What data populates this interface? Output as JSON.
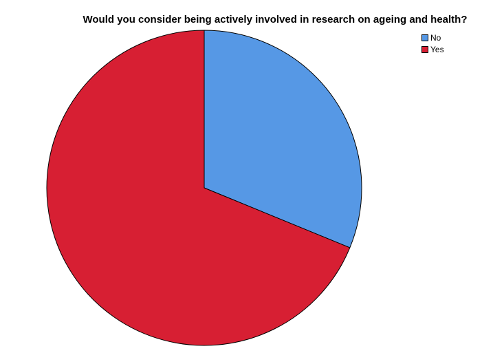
{
  "chart_data": {
    "type": "pie",
    "title": "Would you consider being actively involved in research on ageing and health?",
    "categories": [
      "No",
      "Yes"
    ],
    "values": [
      31.2,
      68.8
    ],
    "colors": [
      "#5698e5",
      "#d71f33"
    ],
    "legend_position": "top-right"
  }
}
